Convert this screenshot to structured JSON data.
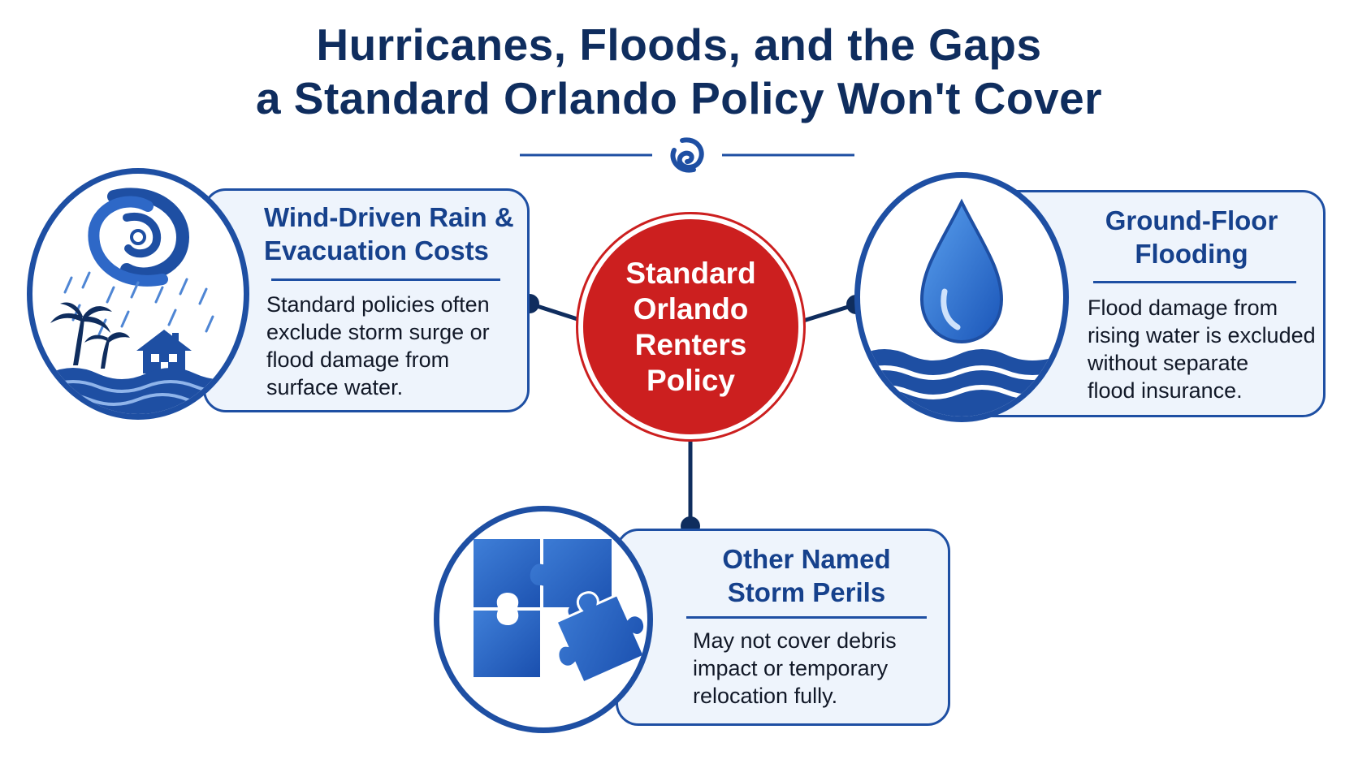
{
  "title": {
    "line1": "Hurricanes, Floods, and the Gaps",
    "line2": "a Standard Orlando Policy Won't Cover"
  },
  "divider_icon": "hurricane-swirl-icon",
  "center": {
    "lines": [
      "Standard",
      "Orlando",
      "Renters",
      "Policy"
    ],
    "color": "#cc1f1f"
  },
  "cards": [
    {
      "title_lines": [
        "Wind-Driven Rain &",
        "Evacuation Costs"
      ],
      "body_lines": [
        "Standard policies often",
        "exclude storm surge or",
        "flood damage from",
        "surface water."
      ],
      "icon": "hurricane-storm-house-icon"
    },
    {
      "title_lines": [
        "Ground-Floor",
        "Flooding"
      ],
      "body_lines": [
        "Flood damage from",
        "rising water is excluded",
        "without separate",
        "flood insurance."
      ],
      "icon": "water-drop-waves-icon"
    },
    {
      "title_lines": [
        "Other Named",
        "Storm Perils"
      ],
      "body_lines": [
        "May not cover debris",
        "impact or temporary",
        "relocation fully."
      ],
      "icon": "puzzle-pieces-icon"
    }
  ],
  "colors": {
    "navy": "#0f2d5e",
    "accent_blue": "#1e4fa3",
    "card_fill": "#eef4fc",
    "red": "#cc1f1f"
  }
}
